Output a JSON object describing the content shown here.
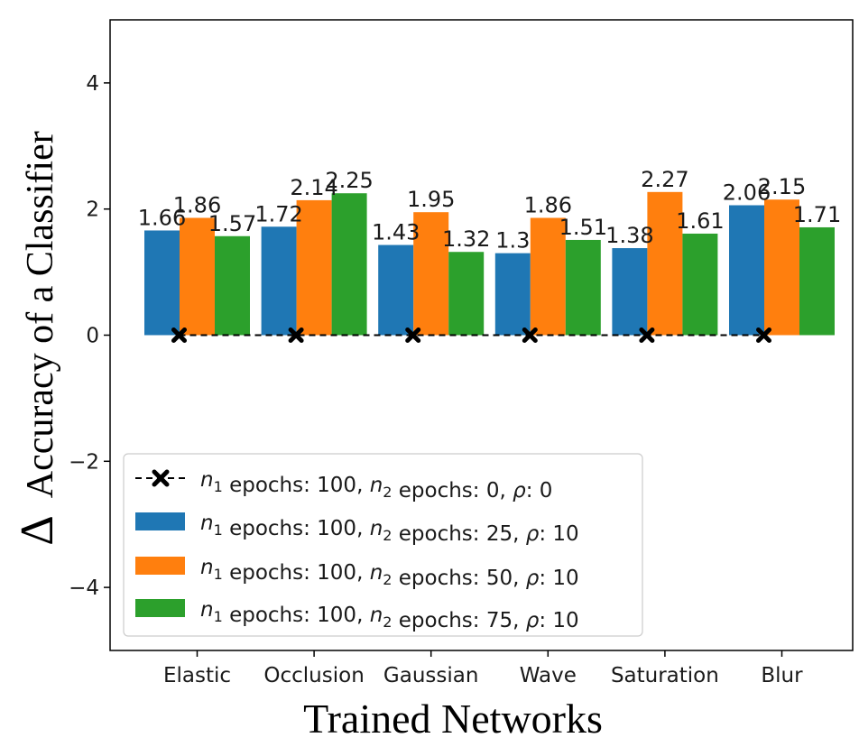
{
  "chart_data": {
    "type": "bar",
    "title": "",
    "xlabel": "Trained Networks",
    "ylabel": "Accuracy of a Classifier",
    "ylabel_prefix": "Δ",
    "ylim": [
      -5,
      5
    ],
    "yticks": [
      4,
      2,
      0,
      -2,
      -4
    ],
    "ytick_labels": [
      "4",
      "2",
      "0",
      "−2",
      "−4"
    ],
    "categories": [
      "Elastic",
      "Occlusion",
      "Gaussian",
      "Wave",
      "Saturation",
      "Blur"
    ],
    "baseline": {
      "name": "n1 epochs: 100, n2 epochs: 0, ρ: 0",
      "legend_parts": [
        "n",
        "1",
        " epochs: 100, ",
        "n",
        "2",
        " epochs: 0, ",
        "ρ",
        ": 0"
      ],
      "values": [
        0,
        0,
        0,
        0,
        0,
        0
      ],
      "color": "#000000",
      "style": "dashed line with x markers"
    },
    "series": [
      {
        "name": "n1 epochs: 100, n2 epochs: 25, ρ: 10",
        "legend_parts": [
          "n",
          "1",
          " epochs: 100, ",
          "n",
          "2",
          " epochs: 25, ",
          "ρ",
          ": 10"
        ],
        "values": [
          1.66,
          1.72,
          1.43,
          1.3,
          1.38,
          2.06
        ],
        "labels": [
          "1.66",
          "1.72",
          "1.43",
          "1.3",
          "1.38",
          "2.06"
        ],
        "color": "#1f77b4"
      },
      {
        "name": "n1 epochs: 100, n2 epochs: 50, ρ: 10",
        "legend_parts": [
          "n",
          "1",
          " epochs: 100, ",
          "n",
          "2",
          " epochs: 50, ",
          "ρ",
          ": 10"
        ],
        "values": [
          1.86,
          2.14,
          1.95,
          1.86,
          2.27,
          2.15
        ],
        "labels": [
          "1.86",
          "2.14",
          "1.95",
          "1.86",
          "2.27",
          "2.15"
        ],
        "color": "#ff7f0e"
      },
      {
        "name": "n1 epochs: 100, n2 epochs: 75, ρ: 10",
        "legend_parts": [
          "n",
          "1",
          " epochs: 100, ",
          "n",
          "2",
          " epochs: 75, ",
          "ρ",
          ": 10"
        ],
        "values": [
          1.57,
          2.25,
          1.32,
          1.51,
          1.61,
          1.71
        ],
        "labels": [
          "1.57",
          "2.25",
          "1.32",
          "1.51",
          "1.61",
          "1.71"
        ],
        "color": "#2ca02c"
      }
    ],
    "legend_position": "lower-left",
    "grid": false
  }
}
